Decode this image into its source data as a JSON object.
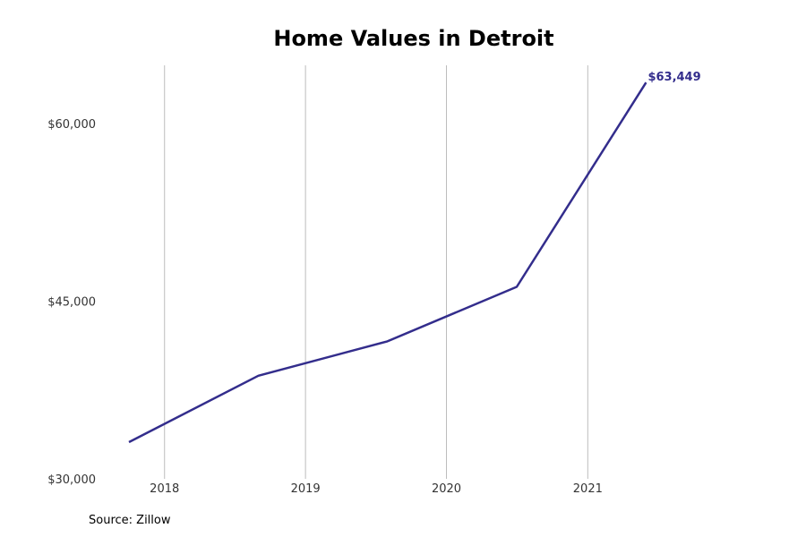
{
  "chart_data": {
    "type": "line",
    "title": "Home Values in Detroit",
    "xlabel": "",
    "ylabel": "",
    "x_ticks": [
      "2018",
      "2019",
      "2020",
      "2021"
    ],
    "y_ticks": [
      "$30,000",
      "$45,000",
      "$60,000"
    ],
    "y_tick_values": [
      30000,
      45000,
      60000
    ],
    "ylim": [
      30000,
      64900
    ],
    "xlim": [
      "2017-07-21",
      "2021-12-28"
    ],
    "grid": "vertical",
    "series": [
      {
        "color": "#332D8C",
        "points": [
          {
            "x": "2017-10-01",
            "y": 33100
          },
          {
            "x": "2018-09-01",
            "y": 38700
          },
          {
            "x": "2019-08-01",
            "y": 41600
          },
          {
            "x": "2020-07-01",
            "y": 46200
          },
          {
            "x": "2021-06-01",
            "y": 63449
          }
        ]
      }
    ],
    "end_label": "$63,449",
    "source": "Source: Zillow"
  }
}
